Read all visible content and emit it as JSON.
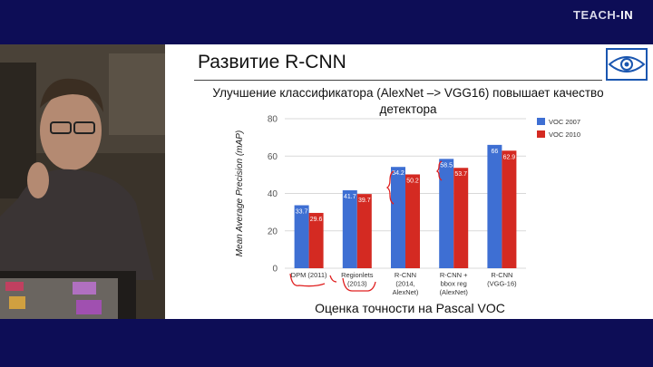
{
  "branding": {
    "logo_main": "TEACH",
    "logo_accent": "-IN"
  },
  "slide": {
    "title": "Развитие R-CNN",
    "chart_title": "Улучшение классификатора (AlexNet –> VGG16) повышает качество детектора"
  },
  "colors": {
    "voc2007": "#3e6fd3",
    "voc2010": "#d42a22",
    "background": "#0d0d56"
  },
  "chart_data": {
    "type": "bar",
    "title": "Улучшение классификатора (AlexNet –> VGG16) повышает качество детектора",
    "ylabel": "Mean Average Precision (mAP)",
    "xlabel": "Оценка точности на Pascal VOC",
    "ylim": [
      0,
      80
    ],
    "yticks": [
      "0",
      "20",
      "40",
      "60",
      "80"
    ],
    "grid": true,
    "legend_position": "top-right",
    "categories": [
      [
        "DPM (2011)"
      ],
      [
        "Regionlets",
        "(2013)"
      ],
      [
        "R-CNN",
        "(2014,",
        "AlexNet)"
      ],
      [
        "R-CNN +",
        "bbox reg",
        "(AlexNet)"
      ],
      [
        "R-CNN",
        "(VGG-16)"
      ]
    ],
    "series": [
      {
        "name": "VOC 2007",
        "values": [
          33.7,
          41.7,
          54.2,
          58.5,
          66
        ],
        "labels": [
          "33.7",
          "41.7",
          "54.2",
          "58.5",
          "66"
        ]
      },
      {
        "name": "VOC 2010",
        "values": [
          29.6,
          39.7,
          50.2,
          53.7,
          62.9
        ],
        "labels": [
          "29.6",
          "39.7",
          "50.2",
          "53.7",
          "62.9"
        ]
      }
    ]
  }
}
